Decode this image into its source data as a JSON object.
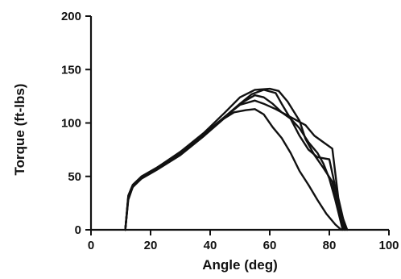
{
  "chart_data": {
    "type": "line",
    "title": "",
    "xlabel": "Angle (deg)",
    "ylabel": "Torque (ft-lbs)",
    "xlim": [
      0,
      100
    ],
    "ylim": [
      0,
      200
    ],
    "xticks": [
      0,
      20,
      40,
      60,
      80,
      100
    ],
    "yticks": [
      0,
      50,
      100,
      150,
      200
    ],
    "grid": false,
    "legend": "none",
    "line_color": "#111111",
    "series": [
      {
        "x": [
          11.5,
          12.5,
          14,
          17,
          22,
          30,
          38,
          45,
          50,
          54,
          58,
          62,
          64,
          67,
          70,
          73,
          76,
          80,
          82,
          84,
          86
        ],
        "y": [
          0,
          30,
          40,
          48,
          56,
          70,
          88,
          105,
          118,
          127,
          131,
          128,
          118,
          104,
          88,
          75,
          68,
          66,
          40,
          15,
          0
        ]
      },
      {
        "x": [
          11.5,
          12.5,
          14,
          17,
          22,
          30,
          38,
          45,
          50,
          55,
          58,
          61,
          64,
          68,
          72,
          75,
          78,
          81,
          83,
          85.5
        ],
        "y": [
          0,
          28,
          40,
          49,
          57,
          72,
          89,
          106,
          118,
          126,
          124,
          118,
          110,
          104,
          98,
          88,
          82,
          76,
          30,
          0
        ]
      },
      {
        "x": [
          11.5,
          12.5,
          14,
          17,
          22,
          30,
          38,
          45,
          50,
          55,
          58,
          62,
          64,
          67,
          70,
          73,
          76,
          78,
          80,
          82,
          84.5
        ],
        "y": [
          0,
          32,
          42,
          50,
          58,
          72,
          90,
          106,
          117,
          121,
          118,
          113,
          110,
          104,
          95,
          82,
          72,
          62,
          48,
          28,
          0
        ]
      },
      {
        "x": [
          11.5,
          12.5,
          14,
          17,
          22,
          30,
          38,
          44,
          48,
          52,
          55,
          58,
          61,
          64,
          67,
          70,
          73,
          76,
          79,
          82,
          84
        ],
        "y": [
          0,
          30,
          40,
          50,
          58,
          73,
          90,
          103,
          110,
          112,
          113,
          108,
          96,
          86,
          72,
          55,
          42,
          28,
          15,
          5,
          0
        ]
      },
      {
        "x": [
          11.5,
          12.5,
          14,
          17,
          22,
          30,
          38,
          45,
          50,
          55,
          60,
          63,
          66,
          70,
          72,
          75,
          78,
          81,
          83,
          85
        ],
        "y": [
          0,
          31,
          41,
          50,
          57,
          73,
          91,
          110,
          124,
          131,
          132,
          130,
          120,
          102,
          85,
          70,
          58,
          45,
          20,
          0
        ]
      }
    ]
  }
}
